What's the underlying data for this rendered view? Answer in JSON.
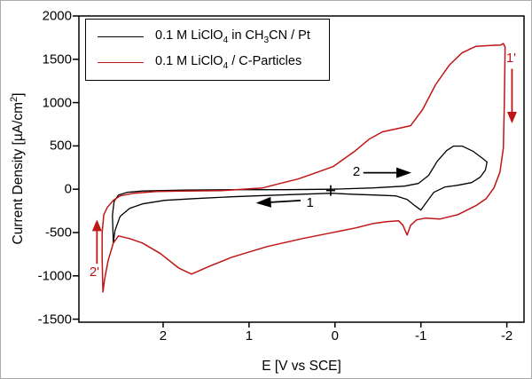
{
  "colors": {
    "black": "#000000",
    "red": "#c01515",
    "frame": "#000000"
  },
  "axes": {
    "x": {
      "title": "E [V vs SCE]",
      "tick_labels": [
        "2",
        "1",
        "0",
        "-1",
        "-2"
      ]
    },
    "y": {
      "title_segments": [
        {
          "t": "Current Density [µA/cm"
        },
        {
          "sup": "2"
        },
        {
          "t": "]"
        }
      ],
      "tick_labels": [
        "2000",
        "1500",
        "1000",
        "500",
        "0",
        "-500",
        "-1000",
        "-1500"
      ]
    }
  },
  "legend": {
    "entries": [
      {
        "name": "0.1 M LiClO4 in CH3CN / Pt",
        "color": "#000000",
        "segments": [
          {
            "t": "0.1 M LiClO"
          },
          {
            "sub": "4"
          },
          {
            "t": " in CH"
          },
          {
            "sub": "3"
          },
          {
            "t": "CN / Pt"
          }
        ]
      },
      {
        "name": "0.1 M LiClO4 / C-Particles",
        "color": "#c01515",
        "segments": [
          {
            "t": "0.1 M LiClO"
          },
          {
            "sub": "4"
          },
          {
            "t": " / C-Particles"
          }
        ]
      }
    ]
  },
  "chart_data": {
    "type": "line",
    "subtype": "cyclic-voltammogram",
    "title": "",
    "xlabel": "E [V vs SCE]",
    "ylabel": "Current Density [µA/cm2]",
    "xlim": [
      2.98,
      -2.2
    ],
    "ylim": [
      -1535,
      2000
    ],
    "x_axis_reversed": true,
    "grid": false,
    "legend_position": "upper left",
    "x_ticks": [
      2,
      1,
      0,
      -1,
      -2
    ],
    "y_ticks": [
      2000,
      1500,
      1000,
      500,
      0,
      -500,
      -1000,
      -1500
    ],
    "series": [
      {
        "name": "0.1 M LiClO4 in CH3CN / Pt",
        "color": "#000000",
        "width": 1.3,
        "points": [
          [
            2.58,
            -620
          ],
          [
            2.59,
            -300
          ],
          [
            2.57,
            -140
          ],
          [
            2.52,
            -67
          ],
          [
            2.42,
            -36
          ],
          [
            2.24,
            -21
          ],
          [
            1.77,
            -10
          ],
          [
            1.2,
            -5
          ],
          [
            0.58,
            -5
          ],
          [
            0.04,
            0
          ],
          [
            -0.45,
            15
          ],
          [
            -0.81,
            36
          ],
          [
            -0.97,
            67
          ],
          [
            -1.09,
            160
          ],
          [
            -1.19,
            323
          ],
          [
            -1.3,
            447
          ],
          [
            -1.38,
            498
          ],
          [
            -1.48,
            498
          ],
          [
            -1.61,
            436
          ],
          [
            -1.72,
            354
          ],
          [
            -1.77,
            313
          ],
          [
            -1.75,
            221
          ],
          [
            -1.69,
            139
          ],
          [
            -1.59,
            77
          ],
          [
            -1.43,
            46
          ],
          [
            -1.28,
            26
          ],
          [
            -1.15,
            -36
          ],
          [
            -1.05,
            -169
          ],
          [
            -1.0,
            -241
          ],
          [
            -0.93,
            -190
          ],
          [
            -0.84,
            -118
          ],
          [
            -0.71,
            -77
          ],
          [
            -0.45,
            -67
          ],
          [
            -0.19,
            -57
          ],
          [
            0.04,
            -46
          ],
          [
            0.38,
            -57
          ],
          [
            0.79,
            -72
          ],
          [
            1.2,
            -87
          ],
          [
            1.62,
            -108
          ],
          [
            1.98,
            -128
          ],
          [
            2.24,
            -169
          ],
          [
            2.39,
            -221
          ],
          [
            2.5,
            -313
          ],
          [
            2.56,
            -477
          ],
          [
            2.58,
            -620
          ]
        ]
      },
      {
        "name": "0.1 M LiClO4 / C-Particles",
        "color": "#c01515",
        "width": 1.5,
        "points": [
          [
            2.7,
            -1186
          ],
          [
            2.71,
            -806
          ],
          [
            2.71,
            -498
          ],
          [
            2.69,
            -293
          ],
          [
            2.65,
            -210
          ],
          [
            2.58,
            -128
          ],
          [
            2.5,
            -77
          ],
          [
            2.34,
            -46
          ],
          [
            2.08,
            -26
          ],
          [
            1.77,
            -21
          ],
          [
            1.31,
            -15
          ],
          [
            0.84,
            15
          ],
          [
            0.64,
            67
          ],
          [
            0.43,
            118
          ],
          [
            0.22,
            190
          ],
          [
            0.02,
            262
          ],
          [
            -0.24,
            447
          ],
          [
            -0.4,
            580
          ],
          [
            -0.55,
            662
          ],
          [
            -0.74,
            703
          ],
          [
            -0.88,
            734
          ],
          [
            -1.02,
            919
          ],
          [
            -1.17,
            1206
          ],
          [
            -1.33,
            1432
          ],
          [
            -1.48,
            1576
          ],
          [
            -1.64,
            1650
          ],
          [
            -1.81,
            1660
          ],
          [
            -1.93,
            1665
          ],
          [
            -1.96,
            1682
          ],
          [
            -1.98,
            1640
          ],
          [
            -1.97,
            939
          ],
          [
            -1.96,
            477
          ],
          [
            -1.92,
            200
          ],
          [
            -1.85,
            15
          ],
          [
            -1.76,
            -108
          ],
          [
            -1.64,
            -190
          ],
          [
            -1.43,
            -293
          ],
          [
            -1.22,
            -344
          ],
          [
            -1.05,
            -334
          ],
          [
            -0.95,
            -354
          ],
          [
            -0.88,
            -416
          ],
          [
            -0.84,
            -529
          ],
          [
            -0.79,
            -416
          ],
          [
            -0.74,
            -364
          ],
          [
            -0.6,
            -375
          ],
          [
            -0.45,
            -395
          ],
          [
            -0.24,
            -447
          ],
          [
            0.07,
            -508
          ],
          [
            0.38,
            -570
          ],
          [
            0.79,
            -662
          ],
          [
            1.2,
            -785
          ],
          [
            1.46,
            -888
          ],
          [
            1.67,
            -980
          ],
          [
            1.82,
            -909
          ],
          [
            2.03,
            -744
          ],
          [
            2.24,
            -621
          ],
          [
            2.39,
            -570
          ],
          [
            2.52,
            -539
          ],
          [
            2.58,
            -621
          ],
          [
            2.64,
            -826
          ],
          [
            2.68,
            -1032
          ],
          [
            2.7,
            -1186
          ]
        ]
      }
    ],
    "start_marker": {
      "E": 0.05,
      "I": -15
    },
    "annotations": [
      {
        "label": "2",
        "color": "#000000",
        "dir": "right",
        "tail": {
          "E": -0.33,
          "I": 190
        },
        "head": {
          "E": -0.89,
          "I": 190
        },
        "label_at": {
          "E": -0.25,
          "I": 200
        }
      },
      {
        "label": "1",
        "color": "#000000",
        "dir": "left",
        "tail": {
          "E": 0.4,
          "I": -130
        },
        "head": {
          "E": 0.92,
          "I": -160
        },
        "label_at": {
          "E": 0.29,
          "I": -165
        }
      },
      {
        "label": "1'",
        "color": "#c01515",
        "dir": "down",
        "tail": {
          "E": -2.06,
          "I": 1390
        },
        "head": {
          "E": -2.06,
          "I": 760
        },
        "label_at": {
          "E": -2.05,
          "I": 1505
        }
      },
      {
        "label": "2'",
        "color": "#c01515",
        "dir": "up",
        "tail": {
          "E": 2.77,
          "I": -860
        },
        "head": {
          "E": 2.77,
          "I": -350
        },
        "label_at": {
          "E": 2.8,
          "I": -965
        }
      }
    ]
  }
}
